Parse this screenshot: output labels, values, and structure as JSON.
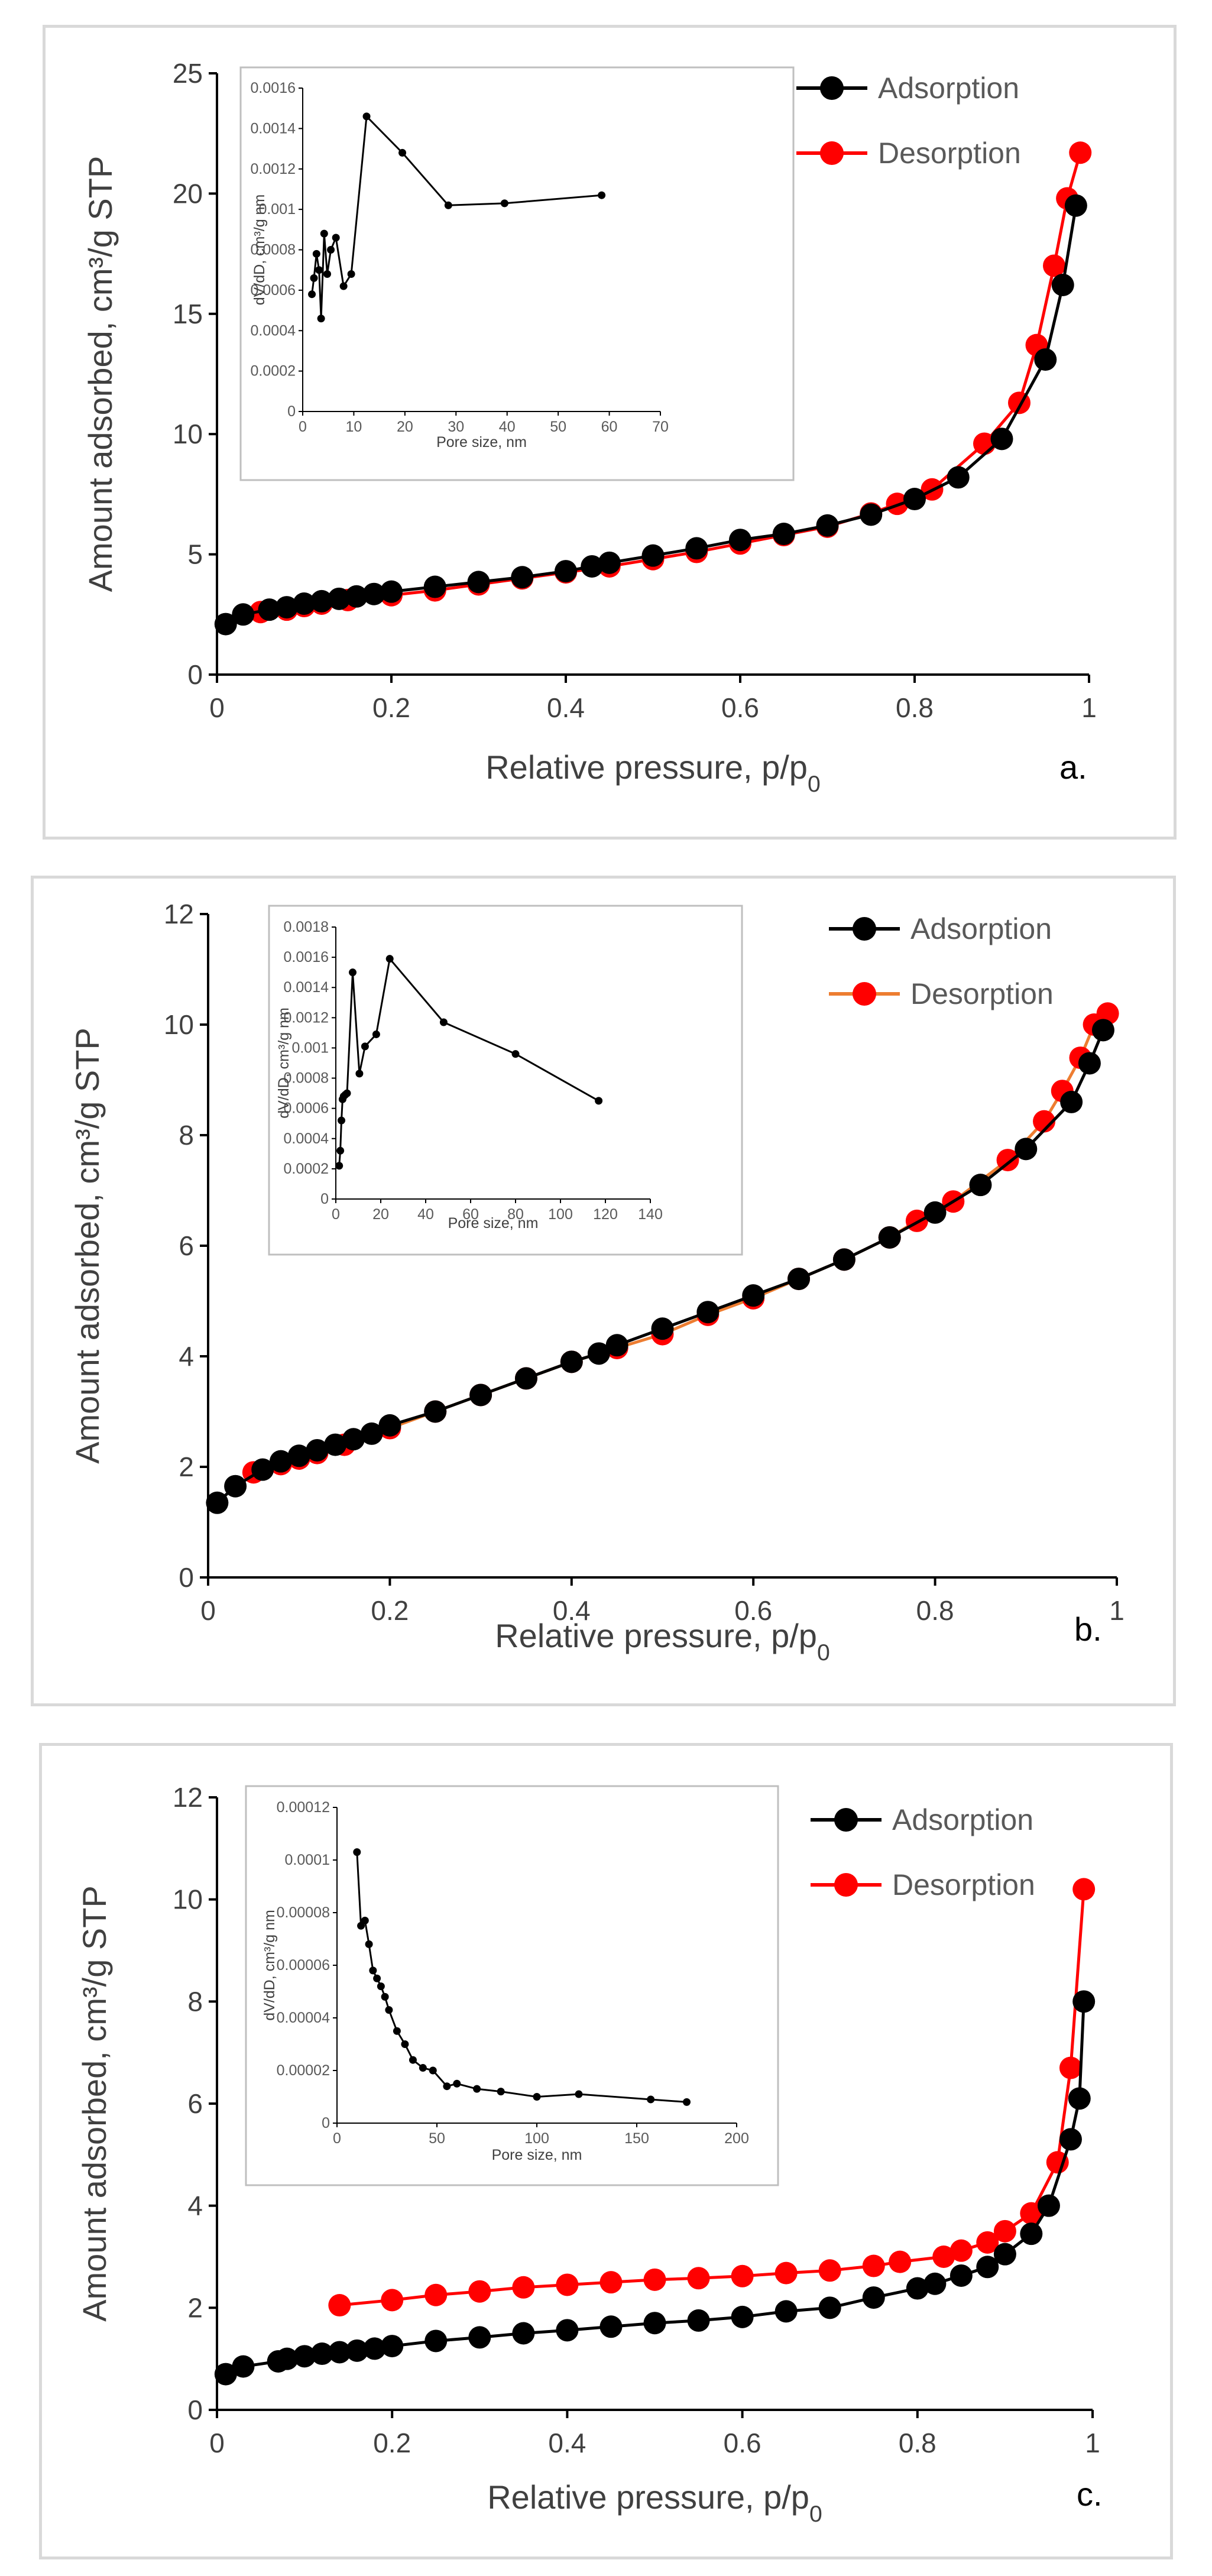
{
  "colors": {
    "adsorption": "#000000",
    "desorption_a": "#ff0000",
    "desorption_b": "#ff0000",
    "desorption_b_line": "#ed7d31",
    "desorption_c": "#ff0000",
    "inset": "#000000"
  },
  "chart_data": [
    {
      "type": "scatter",
      "panel_label": "a.",
      "xlabel": "Relative pressure, p/p0",
      "ylabel": "Amount adsorbed, cm³/g STP",
      "xlim": [
        0,
        1
      ],
      "ylim": [
        0,
        25
      ],
      "xticks": [
        0,
        0.2,
        0.4,
        0.6,
        0.8,
        1
      ],
      "yticks": [
        0,
        5,
        10,
        15,
        20,
        25
      ],
      "legend_position": "top-right",
      "series": [
        {
          "name": "Adsorption",
          "x": [
            0.01,
            0.03,
            0.06,
            0.08,
            0.1,
            0.12,
            0.14,
            0.16,
            0.18,
            0.2,
            0.25,
            0.3,
            0.35,
            0.4,
            0.43,
            0.45,
            0.5,
            0.55,
            0.6,
            0.65,
            0.7,
            0.75,
            0.8,
            0.85,
            0.9,
            0.95,
            0.97,
            0.985
          ],
          "y": [
            2.1,
            2.5,
            2.7,
            2.8,
            2.95,
            3.05,
            3.15,
            3.25,
            3.35,
            3.45,
            3.65,
            3.85,
            4.05,
            4.3,
            4.5,
            4.65,
            4.95,
            5.25,
            5.6,
            5.85,
            6.2,
            6.65,
            7.3,
            8.2,
            9.8,
            13.1,
            16.2,
            19.5
          ]
        },
        {
          "name": "Desorption",
          "x": [
            0.05,
            0.08,
            0.1,
            0.12,
            0.15,
            0.2,
            0.25,
            0.3,
            0.35,
            0.4,
            0.45,
            0.5,
            0.55,
            0.6,
            0.65,
            0.7,
            0.75,
            0.78,
            0.82,
            0.88,
            0.92,
            0.94,
            0.96,
            0.975,
            0.99
          ],
          "y": [
            2.6,
            2.7,
            2.85,
            2.95,
            3.1,
            3.3,
            3.5,
            3.75,
            4.0,
            4.25,
            4.5,
            4.8,
            5.1,
            5.45,
            5.8,
            6.15,
            6.7,
            7.1,
            7.7,
            9.6,
            11.3,
            13.7,
            17.0,
            19.8,
            21.7
          ]
        }
      ],
      "inset": {
        "xlabel": "Pore size, nm",
        "ylabel": "dV/dD, cm³/g nm",
        "xlim": [
          0,
          70
        ],
        "ylim": [
          0,
          0.0016
        ],
        "xticks": [
          0,
          10,
          20,
          30,
          40,
          50,
          60,
          70
        ],
        "yticks": [
          "0",
          "0.0002",
          "0.0004",
          "0.0006",
          "0.0008",
          "0.001",
          "0.0012",
          "0.0014",
          "0.0016"
        ],
        "x": [
          1.8,
          2.2,
          2.7,
          3.2,
          3.6,
          4.2,
          4.8,
          5.5,
          6.5,
          8,
          9.5,
          12.5,
          19.5,
          28.5,
          39.5,
          58.5
        ],
        "y": [
          0.00058,
          0.00066,
          0.00078,
          0.0007,
          0.00046,
          0.00088,
          0.00068,
          0.0008,
          0.00086,
          0.00062,
          0.00068,
          0.00146,
          0.00128,
          0.00102,
          0.00103,
          0.00107
        ]
      }
    },
    {
      "type": "scatter",
      "panel_label": "b.",
      "xlabel": "Relative pressure, p/p0",
      "ylabel": "Amount adsorbed, cm³/g STP",
      "xlim": [
        0,
        1
      ],
      "ylim": [
        0,
        12
      ],
      "xticks": [
        0,
        0.2,
        0.4,
        0.6,
        0.8,
        1
      ],
      "yticks": [
        0,
        2,
        4,
        6,
        8,
        10,
        12
      ],
      "legend_position": "top-right",
      "series": [
        {
          "name": "Adsorption",
          "x": [
            0.01,
            0.03,
            0.06,
            0.08,
            0.1,
            0.12,
            0.14,
            0.16,
            0.18,
            0.2,
            0.25,
            0.3,
            0.35,
            0.4,
            0.43,
            0.45,
            0.5,
            0.55,
            0.6,
            0.65,
            0.7,
            0.75,
            0.8,
            0.85,
            0.9,
            0.95,
            0.97,
            0.985
          ],
          "y": [
            1.35,
            1.65,
            1.95,
            2.1,
            2.2,
            2.3,
            2.4,
            2.5,
            2.6,
            2.75,
            3.0,
            3.3,
            3.6,
            3.9,
            4.05,
            4.2,
            4.5,
            4.8,
            5.1,
            5.4,
            5.75,
            6.15,
            6.6,
            7.1,
            7.75,
            8.6,
            9.3,
            9.9
          ]
        },
        {
          "name": "Desorption",
          "x": [
            0.05,
            0.08,
            0.1,
            0.12,
            0.15,
            0.2,
            0.25,
            0.3,
            0.35,
            0.4,
            0.45,
            0.5,
            0.55,
            0.6,
            0.65,
            0.7,
            0.75,
            0.78,
            0.82,
            0.88,
            0.92,
            0.94,
            0.96,
            0.975,
            0.99
          ],
          "y": [
            1.9,
            2.05,
            2.15,
            2.25,
            2.4,
            2.7,
            3.0,
            3.3,
            3.6,
            3.9,
            4.15,
            4.4,
            4.75,
            5.05,
            5.4,
            5.75,
            6.15,
            6.45,
            6.8,
            7.55,
            8.25,
            8.8,
            9.4,
            10.0,
            10.2
          ]
        }
      ],
      "inset": {
        "xlabel": "Pore size, nm",
        "ylabel": "dV/dD, cm³/g nm",
        "xlim": [
          0,
          140
        ],
        "ylim": [
          0,
          0.0018
        ],
        "xticks": [
          0,
          20,
          40,
          60,
          80,
          100,
          120,
          140
        ],
        "yticks": [
          "0",
          "0.0002",
          "0.0004",
          "0.0006",
          "0.0008",
          "0.001",
          "0.0012",
          "0.0014",
          "0.0016",
          "0.0018"
        ],
        "x": [
          1.5,
          2.0,
          2.5,
          3.0,
          3.5,
          4.2,
          5.0,
          7.5,
          10.5,
          13,
          18,
          24,
          48,
          80,
          117
        ],
        "y": [
          0.00022,
          0.00032,
          0.00052,
          0.00066,
          0.00068,
          0.00069,
          0.0007,
          0.0015,
          0.00083,
          0.00101,
          0.00109,
          0.00159,
          0.00117,
          0.00096,
          0.00065
        ]
      }
    },
    {
      "type": "scatter",
      "panel_label": "c.",
      "xlabel": "Relative pressure, p/p0",
      "ylabel": "Amount adsorbed, cm³/g STP",
      "xlim": [
        0,
        1
      ],
      "ylim": [
        0,
        12
      ],
      "xticks": [
        0,
        0.2,
        0.4,
        0.6,
        0.8,
        1
      ],
      "yticks": [
        0,
        2,
        4,
        6,
        8,
        10,
        12
      ],
      "legend_position": "top-right",
      "series": [
        {
          "name": "Adsorption",
          "x": [
            0.01,
            0.03,
            0.07,
            0.08,
            0.1,
            0.12,
            0.14,
            0.16,
            0.18,
            0.2,
            0.25,
            0.3,
            0.35,
            0.4,
            0.45,
            0.5,
            0.55,
            0.6,
            0.65,
            0.7,
            0.75,
            0.8,
            0.82,
            0.85,
            0.88,
            0.9,
            0.93,
            0.95,
            0.975,
            0.985,
            0.99
          ],
          "y": [
            0.7,
            0.85,
            0.95,
            1.0,
            1.05,
            1.1,
            1.13,
            1.16,
            1.2,
            1.25,
            1.35,
            1.42,
            1.5,
            1.56,
            1.63,
            1.7,
            1.75,
            1.82,
            1.93,
            2.0,
            2.2,
            2.38,
            2.47,
            2.63,
            2.8,
            3.05,
            3.45,
            4.0,
            5.3,
            6.1,
            8.0
          ]
        },
        {
          "name": "Desorption",
          "x": [
            0.14,
            0.2,
            0.25,
            0.3,
            0.35,
            0.4,
            0.45,
            0.5,
            0.55,
            0.6,
            0.65,
            0.7,
            0.75,
            0.78,
            0.83,
            0.85,
            0.88,
            0.9,
            0.93,
            0.96,
            0.975,
            0.99
          ],
          "y": [
            2.05,
            2.15,
            2.25,
            2.32,
            2.4,
            2.45,
            2.5,
            2.55,
            2.58,
            2.62,
            2.68,
            2.73,
            2.82,
            2.9,
            3.0,
            3.12,
            3.28,
            3.5,
            3.85,
            4.85,
            6.7,
            10.2
          ]
        }
      ],
      "inset": {
        "xlabel": "Pore size, nm",
        "ylabel": "dV/dD, cm³/g nm",
        "xlim": [
          0,
          200
        ],
        "ylim": [
          0,
          0.00012
        ],
        "xticks": [
          0,
          50,
          100,
          150,
          200
        ],
        "yticks": [
          "0",
          "0.00002",
          "0.00004",
          "0.00006",
          "0.00008",
          "0.0001",
          "0.00012"
        ],
        "x": [
          10,
          12,
          14,
          16,
          18,
          20,
          22,
          24,
          26,
          30,
          34,
          38,
          43,
          48,
          55,
          60,
          70,
          82,
          100,
          121,
          157,
          175
        ],
        "y": [
          0.000103,
          7.5e-05,
          7.7e-05,
          6.8e-05,
          5.8e-05,
          5.5e-05,
          5.2e-05,
          4.8e-05,
          4.3e-05,
          3.5e-05,
          3e-05,
          2.4e-05,
          2.1e-05,
          2e-05,
          1.4e-05,
          1.5e-05,
          1.3e-05,
          1.2e-05,
          1e-05,
          1.1e-05,
          9e-06,
          8e-06
        ]
      }
    }
  ]
}
